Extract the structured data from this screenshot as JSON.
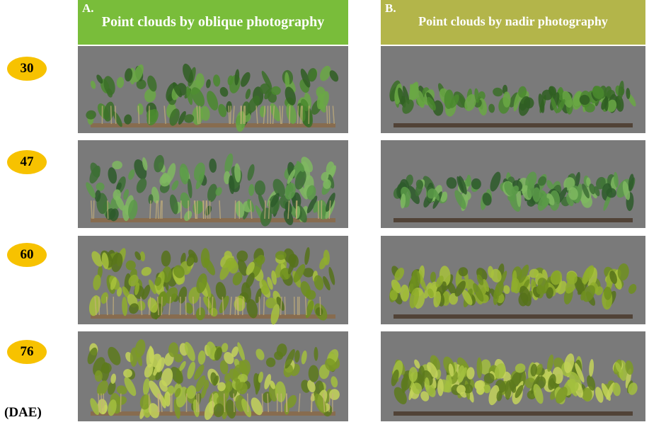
{
  "panels": {
    "columns": [
      {
        "letter": "A.",
        "title": "Point clouds by oblique photography"
      },
      {
        "letter": "B.",
        "title": "Point clouds by nadir photography"
      }
    ],
    "rows": [
      30,
      47,
      60,
      76
    ],
    "unit_label": "(DAE)"
  }
}
